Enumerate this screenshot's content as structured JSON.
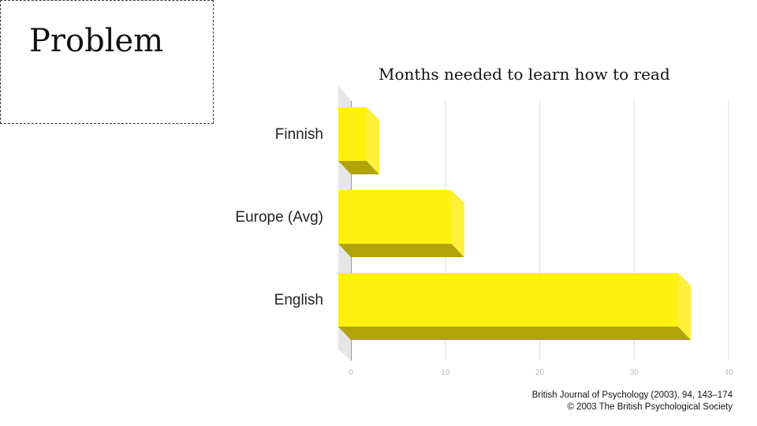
{
  "slide": {
    "title": "Problem"
  },
  "chart_data": {
    "type": "bar",
    "orientation": "horizontal",
    "style": "3d",
    "title": "Months needed to learn how to read",
    "categories": [
      "Finnish",
      "Europe (Avg)",
      "English"
    ],
    "values": [
      3,
      12,
      36
    ],
    "xlim": [
      0,
      40
    ],
    "x_ticks": [
      "0",
      "10",
      "20",
      "30",
      "40"
    ],
    "grid": true,
    "bar_color": "#fff00f",
    "bar_side_color": "#fff03a",
    "bar_shadow_color": "#b0a40a"
  },
  "citation": {
    "line1": "British Journal of Psychology (2003), 94, 143–174",
    "line2": "© 2003 The British Psychological Society"
  }
}
